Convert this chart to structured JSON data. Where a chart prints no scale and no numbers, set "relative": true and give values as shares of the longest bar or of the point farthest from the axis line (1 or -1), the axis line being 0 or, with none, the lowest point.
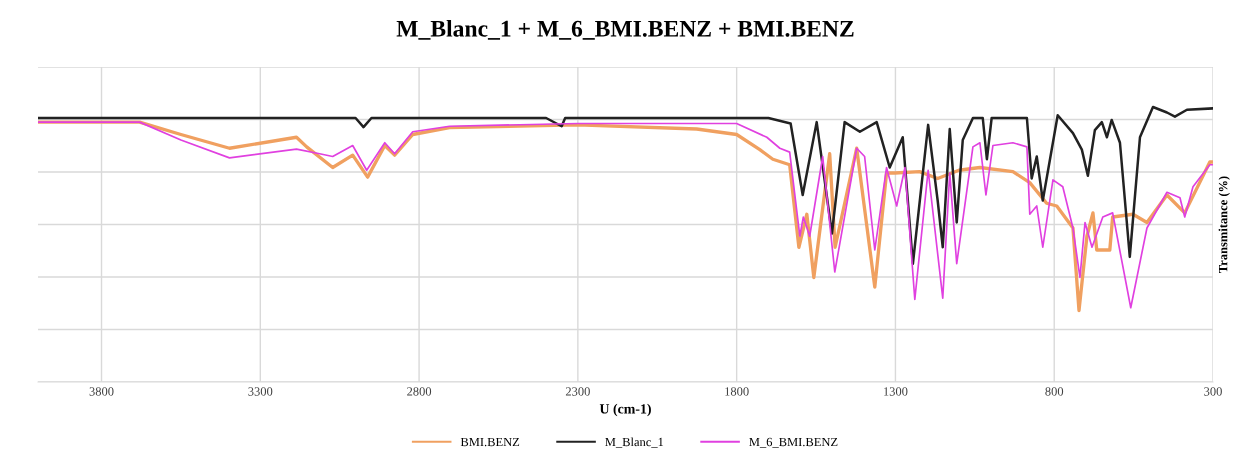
{
  "chart_data": {
    "type": "line",
    "title": "M_Blanc_1 + M_6_BMI.BENZ + BMI.BENZ",
    "xlabel": "U (cm-1)",
    "ylabel": "Transmitance (%)",
    "relative": true,
    "xlim": [
      4000,
      300
    ],
    "xticks": [
      3800,
      3300,
      2800,
      2300,
      1800,
      1300,
      800,
      300
    ],
    "grid": true,
    "legend": "bottom",
    "tick_labels": "x",
    "marker": "none",
    "line_style": "solid",
    "series": [
      {
        "name": "BMI.BENZ",
        "color": "#f0a060",
        "x": [
          4000,
          3680,
          3550,
          3397,
          3186,
          3154,
          3072,
          3009,
          2962,
          2908,
          2877,
          2820,
          2704,
          2300,
          1926,
          1800,
          1727,
          1686,
          1633,
          1604,
          1579,
          1557,
          1507,
          1490,
          1422,
          1365,
          1328,
          1302,
          1224,
          1167,
          1100,
          1034,
          930,
          877,
          824,
          792,
          741,
          722,
          697,
          678,
          666,
          625,
          616,
          552,
          508,
          445,
          389,
          310,
          300
        ],
        "values": [
          0.945,
          0.945,
          0.9,
          0.85,
          0.89,
          0.855,
          0.78,
          0.825,
          0.745,
          0.86,
          0.825,
          0.9,
          0.925,
          0.935,
          0.92,
          0.9,
          0.845,
          0.81,
          0.79,
          0.49,
          0.61,
          0.38,
          0.83,
          0.49,
          0.85,
          0.345,
          0.76,
          0.76,
          0.765,
          0.74,
          0.77,
          0.78,
          0.765,
          0.725,
          0.65,
          0.64,
          0.56,
          0.26,
          0.53,
          0.615,
          0.48,
          0.48,
          0.6,
          0.61,
          0.58,
          0.68,
          0.615,
          0.8,
          0.8
        ]
      },
      {
        "name": "M_Blanc_1",
        "color": "#222222",
        "x": [
          4000,
          3000,
          2975,
          2950,
          2400,
          2351,
          2340,
          1700,
          1630,
          1592,
          1548,
          1500,
          1460,
          1412,
          1359,
          1318,
          1277,
          1245,
          1197,
          1167,
          1151,
          1129,
          1107,
          1088,
          1056,
          1025,
          1012,
          997,
          886,
          871,
          855,
          836,
          789,
          741,
          713,
          694,
          672,
          650,
          634,
          619,
          593,
          562,
          530,
          489,
          445,
          420,
          382,
          300
        ],
        "values": [
          0.96,
          0.96,
          0.927,
          0.96,
          0.96,
          0.93,
          0.96,
          0.96,
          0.94,
          0.68,
          0.945,
          0.54,
          0.945,
          0.91,
          0.945,
          0.78,
          0.89,
          0.43,
          0.935,
          0.66,
          0.49,
          0.92,
          0.58,
          0.88,
          0.96,
          0.96,
          0.81,
          0.96,
          0.96,
          0.74,
          0.82,
          0.66,
          0.97,
          0.905,
          0.845,
          0.75,
          0.916,
          0.945,
          0.89,
          0.953,
          0.87,
          0.455,
          0.89,
          1.0,
          0.98,
          0.965,
          0.99,
          0.995
        ]
      },
      {
        "name": "M_6_BMI.BENZ",
        "color": "#e040e0",
        "x": [
          4000,
          3680,
          3550,
          3397,
          3186,
          3113,
          3072,
          3009,
          2965,
          2908,
          2877,
          2820,
          2704,
          2300,
          1800,
          1705,
          1664,
          1633,
          1601,
          1590,
          1570,
          1529,
          1491,
          1422,
          1397,
          1365,
          1328,
          1296,
          1270,
          1239,
          1197,
          1151,
          1129,
          1107,
          1056,
          1034,
          1015,
          993,
          930,
          886,
          877,
          855,
          836,
          804,
          773,
          741,
          719,
          703,
          681,
          647,
          616,
          559,
          508,
          445,
          404,
          389,
          363,
          310,
          300
        ],
        "values": [
          0.945,
          0.945,
          0.88,
          0.815,
          0.847,
          0.83,
          0.82,
          0.86,
          0.77,
          0.87,
          0.83,
          0.91,
          0.93,
          0.94,
          0.94,
          0.89,
          0.85,
          0.836,
          0.53,
          0.6,
          0.53,
          0.82,
          0.4,
          0.85,
          0.82,
          0.48,
          0.78,
          0.64,
          0.78,
          0.3,
          0.77,
          0.305,
          0.76,
          0.43,
          0.855,
          0.87,
          0.68,
          0.86,
          0.87,
          0.855,
          0.61,
          0.64,
          0.49,
          0.735,
          0.71,
          0.56,
          0.38,
          0.58,
          0.49,
          0.6,
          0.615,
          0.27,
          0.56,
          0.69,
          0.67,
          0.6,
          0.71,
          0.79,
          0.79
        ]
      }
    ]
  }
}
